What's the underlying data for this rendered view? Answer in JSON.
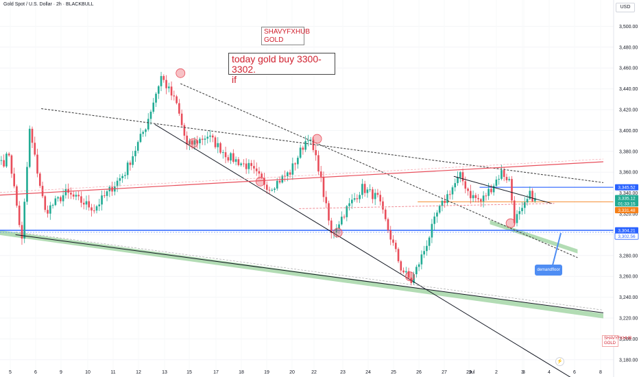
{
  "header": {
    "symbol_title": "Gold Spot / U.S. Dollar · 2h · BLACKBULL",
    "currency": "USD"
  },
  "annotations": {
    "brand_line1": "SHAVYFXHUB",
    "brand_line2": "GOLD",
    "trade_line1": "today gold buy 3300-3302.",
    "trade_line2": "if",
    "callout": "demandfloor",
    "watermark_line1": "SHAVYFXHUB",
    "watermark_line2": "GOLD",
    "lightning_icon": "lightning-icon"
  },
  "colors": {
    "up": "#22ab94",
    "down": "#e84d5a",
    "resistance": "#e84d5a",
    "support": "#2962ff",
    "demand_zone": "#a5d6a7",
    "price_badge": "#22ab94",
    "last_price_badge": "#f57f17"
  },
  "chart_data": {
    "type": "candlestick",
    "timeframe": "2h",
    "ylim": [
      3170,
      3520
    ],
    "y_ticks": [
      3180,
      3200,
      3220,
      3240,
      3260,
      3280,
      3300,
      3320,
      3340,
      3360,
      3380,
      3400,
      3420,
      3440,
      3460,
      3480,
      3500
    ],
    "y_tick_labels": [
      "3,180.00",
      "3,200.00",
      "3,220.00",
      "3,240.00",
      "3,260.00",
      "3,280.00",
      "3,300.00",
      "3,320.00",
      "3,340.00",
      "3,360.00",
      "3,380.00",
      "3,400.00",
      "3,420.00",
      "3,440.00",
      "3,460.00",
      "3,480.00",
      "3,500.00"
    ],
    "x_tick_labels": [
      "5",
      "6",
      "9",
      "10",
      "11",
      "12",
      "13",
      "15",
      "17",
      "18",
      "19",
      "20",
      "22",
      "23",
      "24",
      "25",
      "26",
      "27",
      "29",
      "Jul",
      "2",
      "3",
      "3",
      "4",
      "6",
      "8"
    ],
    "price_badges": [
      {
        "label": "3,345.52",
        "value": 3345.52,
        "style": "blue"
      },
      {
        "label": "3,335.12",
        "value": 3335.12,
        "style": "green"
      },
      {
        "label": "01:33:15",
        "value": 3330.0,
        "style": "green"
      },
      {
        "label": "3,331.48",
        "value": 3323.5,
        "style": "orange"
      },
      {
        "label": "3,304.21",
        "value": 3304.21,
        "style": "blue"
      },
      {
        "label": "3,302.56",
        "value": 3298.5,
        "style": "blue-outline"
      }
    ],
    "key_points": [
      {
        "x": 1,
        "y": 3370
      },
      {
        "x": 3,
        "y": 3378
      },
      {
        "x": 8,
        "y": 3294
      },
      {
        "x": 11,
        "y": 3400
      },
      {
        "x": 17,
        "y": 3322
      },
      {
        "x": 25,
        "y": 3340
      },
      {
        "x": 36,
        "y": 3325
      },
      {
        "x": 48,
        "y": 3360
      },
      {
        "x": 56,
        "y": 3404
      },
      {
        "x": 62,
        "y": 3452
      },
      {
        "x": 68,
        "y": 3425
      },
      {
        "x": 72,
        "y": 3385
      },
      {
        "x": 80,
        "y": 3395
      },
      {
        "x": 88,
        "y": 3375
      },
      {
        "x": 96,
        "y": 3365
      },
      {
        "x": 104,
        "y": 3345
      },
      {
        "x": 112,
        "y": 3360
      },
      {
        "x": 119,
        "y": 3395
      },
      {
        "x": 123,
        "y": 3365
      },
      {
        "x": 128,
        "y": 3300
      },
      {
        "x": 134,
        "y": 3325
      },
      {
        "x": 140,
        "y": 3345
      },
      {
        "x": 146,
        "y": 3335
      },
      {
        "x": 150,
        "y": 3305
      },
      {
        "x": 155,
        "y": 3268
      },
      {
        "x": 159,
        "y": 3255
      },
      {
        "x": 164,
        "y": 3285
      },
      {
        "x": 169,
        "y": 3320
      },
      {
        "x": 174,
        "y": 3342
      },
      {
        "x": 178,
        "y": 3356
      },
      {
        "x": 182,
        "y": 3338
      },
      {
        "x": 186,
        "y": 3332
      },
      {
        "x": 190,
        "y": 3345
      },
      {
        "x": 194,
        "y": 3360
      },
      {
        "x": 197,
        "y": 3352
      },
      {
        "x": 199,
        "y": 3315
      },
      {
        "x": 202,
        "y": 3322
      },
      {
        "x": 205,
        "y": 3338
      },
      {
        "x": 207,
        "y": 3335
      }
    ],
    "levels": [
      {
        "name": "3,345.52",
        "value": 3345.52,
        "color": "#2962ff"
      },
      {
        "name": "3,304.21",
        "value": 3304.21,
        "color": "#2962ff"
      },
      {
        "name": "3,331.48",
        "value": 3331.48,
        "color": "#f57f17"
      }
    ],
    "trendlines": [
      {
        "from": [
          70,
          3445
        ],
        "to": [
          224,
          3278
        ],
        "style": "dashed"
      },
      {
        "from": [
          16,
          3421
        ],
        "to": [
          234,
          3350
        ],
        "style": "dashed"
      },
      {
        "from": [
          60,
          3406
        ],
        "to": [
          230,
          3150
        ],
        "style": "solid"
      },
      {
        "from": [
          0,
          3338
        ],
        "to": [
          234,
          3370
        ],
        "style": "resistance"
      },
      {
        "from": [
          176,
          3356
        ],
        "to": [
          214,
          3330
        ],
        "style": "solid"
      },
      {
        "from": [
          6,
          3300
        ],
        "to": [
          234,
          3225
        ],
        "style": "solid"
      },
      {
        "from": [
          116,
          3325
        ],
        "to": [
          215,
          3330
        ],
        "style": "pink-dashed"
      }
    ],
    "demand_zones": [
      {
        "from": [
          0,
          3302
        ],
        "to": [
          234,
          3222
        ]
      },
      {
        "from": [
          190,
          3312
        ],
        "to": [
          224,
          3284
        ]
      }
    ],
    "touch_markers": [
      {
        "x": 70,
        "y": 3455
      },
      {
        "x": 75,
        "y": 3388
      },
      {
        "x": 101,
        "y": 3351
      },
      {
        "x": 123,
        "y": 3392
      },
      {
        "x": 131,
        "y": 3302
      },
      {
        "x": 159,
        "y": 3260
      },
      {
        "x": 198,
        "y": 3311
      }
    ]
  }
}
